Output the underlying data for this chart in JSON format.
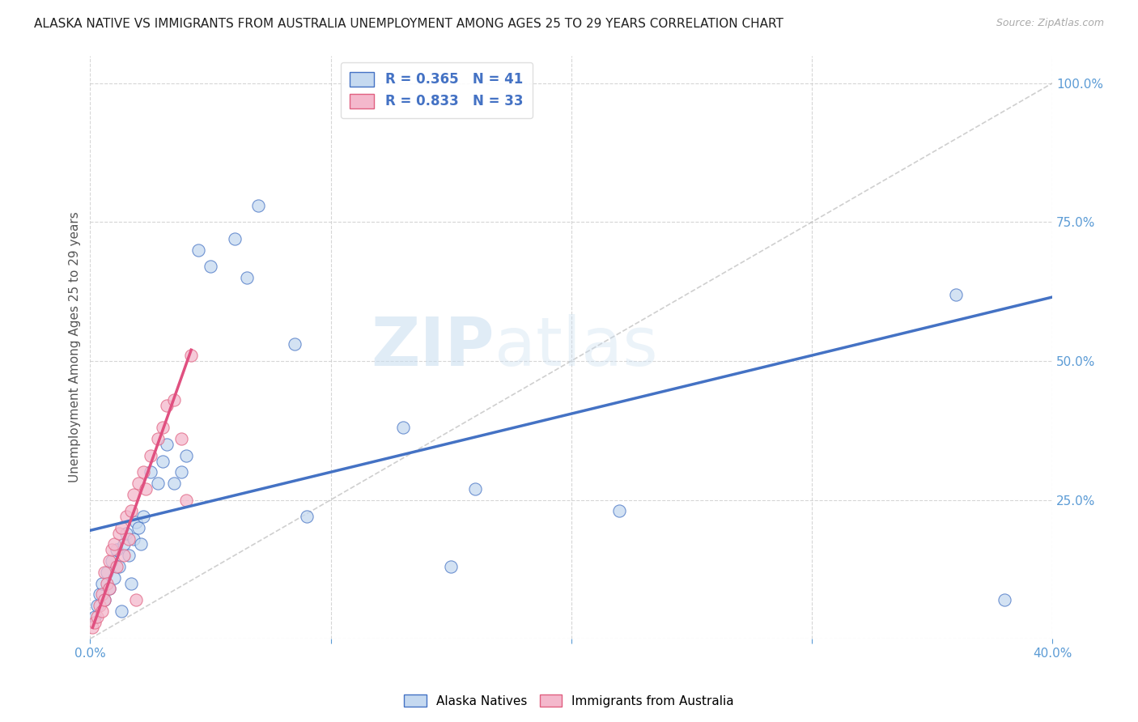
{
  "title": "ALASKA NATIVE VS IMMIGRANTS FROM AUSTRALIA UNEMPLOYMENT AMONG AGES 25 TO 29 YEARS CORRELATION CHART",
  "source": "Source: ZipAtlas.com",
  "ylabel": "Unemployment Among Ages 25 to 29 years",
  "watermark_zip": "ZIP",
  "watermark_atlas": "atlas",
  "xlim": [
    0.0,
    0.4
  ],
  "ylim": [
    0.0,
    1.05
  ],
  "xticks": [
    0.0,
    0.1,
    0.2,
    0.3,
    0.4
  ],
  "yticks": [
    0.0,
    0.25,
    0.5,
    0.75,
    1.0
  ],
  "alaska_R": 0.365,
  "alaska_N": 41,
  "australia_R": 0.833,
  "australia_N": 33,
  "alaska_face_color": "#c5d9f0",
  "alaska_edge_color": "#4472c4",
  "alaska_line_color": "#4472c4",
  "australia_face_color": "#f4b8cc",
  "australia_edge_color": "#e06080",
  "australia_line_color": "#e05080",
  "diagonal_color": "#bbbbbb",
  "background_color": "#ffffff",
  "grid_color": "#cccccc",
  "title_color": "#222222",
  "source_color": "#aaaaaa",
  "tick_color": "#5b9bd5",
  "ylabel_color": "#555555",
  "legend_text_color": "#4472c4",
  "alaska_scatter_x": [
    0.002,
    0.003,
    0.004,
    0.005,
    0.006,
    0.007,
    0.008,
    0.009,
    0.01,
    0.011,
    0.012,
    0.013,
    0.014,
    0.015,
    0.016,
    0.017,
    0.018,
    0.019,
    0.02,
    0.021,
    0.022,
    0.025,
    0.028,
    0.03,
    0.032,
    0.035,
    0.038,
    0.04,
    0.045,
    0.05,
    0.06,
    0.065,
    0.07,
    0.085,
    0.09,
    0.13,
    0.15,
    0.16,
    0.22,
    0.36,
    0.38
  ],
  "alaska_scatter_y": [
    0.04,
    0.06,
    0.08,
    0.1,
    0.07,
    0.12,
    0.09,
    0.14,
    0.11,
    0.16,
    0.13,
    0.05,
    0.17,
    0.19,
    0.15,
    0.1,
    0.18,
    0.21,
    0.2,
    0.17,
    0.22,
    0.3,
    0.28,
    0.32,
    0.35,
    0.28,
    0.3,
    0.33,
    0.7,
    0.67,
    0.72,
    0.65,
    0.78,
    0.53,
    0.22,
    0.38,
    0.13,
    0.27,
    0.23,
    0.62,
    0.07
  ],
  "australia_scatter_x": [
    0.001,
    0.002,
    0.003,
    0.004,
    0.005,
    0.005,
    0.006,
    0.006,
    0.007,
    0.008,
    0.008,
    0.009,
    0.01,
    0.011,
    0.012,
    0.013,
    0.014,
    0.015,
    0.016,
    0.017,
    0.018,
    0.019,
    0.02,
    0.022,
    0.023,
    0.025,
    0.028,
    0.03,
    0.032,
    0.035,
    0.038,
    0.04,
    0.042
  ],
  "australia_scatter_y": [
    0.02,
    0.03,
    0.04,
    0.06,
    0.08,
    0.05,
    0.07,
    0.12,
    0.1,
    0.14,
    0.09,
    0.16,
    0.17,
    0.13,
    0.19,
    0.2,
    0.15,
    0.22,
    0.18,
    0.23,
    0.26,
    0.07,
    0.28,
    0.3,
    0.27,
    0.33,
    0.36,
    0.38,
    0.42,
    0.43,
    0.36,
    0.25,
    0.51
  ],
  "alaska_line_x": [
    0.0,
    0.4
  ],
  "alaska_line_y": [
    0.195,
    0.615
  ],
  "australia_line_x": [
    0.001,
    0.042
  ],
  "australia_line_y": [
    0.02,
    0.52
  ]
}
